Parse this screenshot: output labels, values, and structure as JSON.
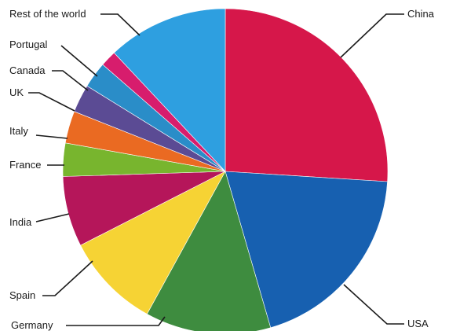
{
  "chart_data": {
    "type": "pie",
    "title": "",
    "start_angle_deg": 0,
    "direction": "clockwise",
    "slices": [
      {
        "label": "China",
        "value": 26.0,
        "color": "#d6174a"
      },
      {
        "label": "USA",
        "value": 19.5,
        "color": "#1760b0"
      },
      {
        "label": "Germany",
        "value": 12.5,
        "color": "#3e8c3f"
      },
      {
        "label": "Spain",
        "value": 9.5,
        "color": "#f6d334"
      },
      {
        "label": "India",
        "value": 7.0,
        "color": "#b5165a"
      },
      {
        "label": "France",
        "value": 3.3,
        "color": "#78b52e"
      },
      {
        "label": "Italy",
        "value": 3.2,
        "color": "#ea6a22"
      },
      {
        "label": "UK",
        "value": 2.8,
        "color": "#5b4b94"
      },
      {
        "label": "Canada",
        "value": 2.6,
        "color": "#2a8dc8"
      },
      {
        "label": "Portugal",
        "value": 1.6,
        "color": "#d71d6d"
      },
      {
        "label": "Rest of the world",
        "value": 12.0,
        "color": "#2e9fe0"
      }
    ]
  }
}
